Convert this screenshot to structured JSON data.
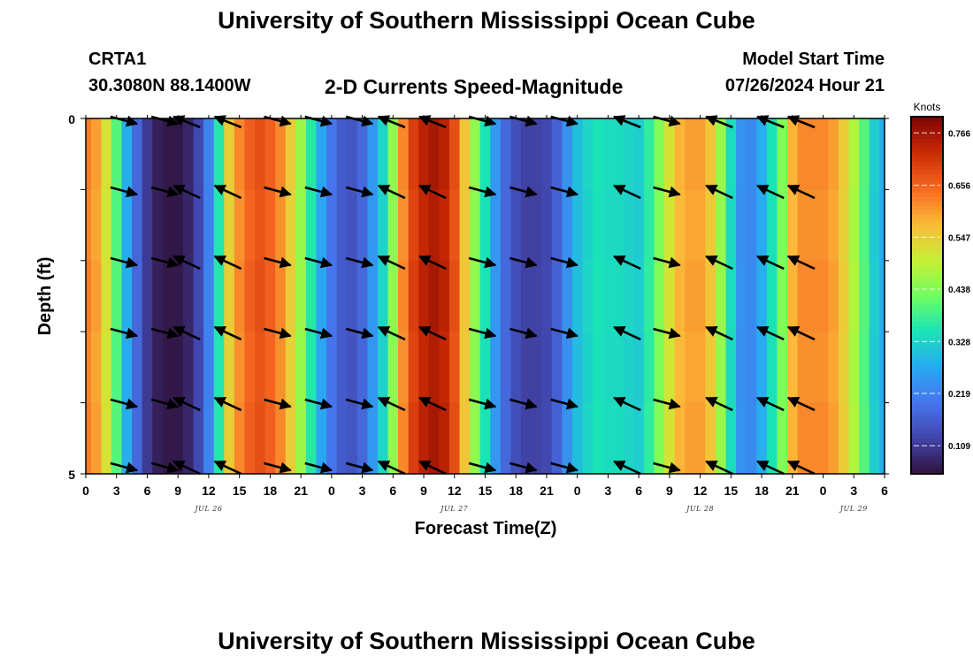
{
  "header": {
    "title": "University of Southern Mississippi Ocean Cube",
    "station": "CRTA1",
    "coords": "30.3080N  88.1400W",
    "subtitle": "2-D Currents Speed-Magnitude",
    "model_start_label": "Model Start Time",
    "model_start_value": "07/26/2024 Hour 21"
  },
  "footer": {
    "title": "University of Southern Mississippi Ocean Cube"
  },
  "chart_data": {
    "type": "heatmap",
    "title": "2-D Currents Speed-Magnitude",
    "xlabel": "Forecast Time(Z)",
    "ylabel": "Depth (ft)",
    "colorbar_label": "Knots",
    "colorbar_ticks": [
      0.766,
      0.656,
      0.547,
      0.438,
      0.328,
      0.219,
      0.109
    ],
    "colorbar_range": [
      0.05,
      0.8
    ],
    "x_range_hours": [
      0,
      78
    ],
    "x_tick_labels": [
      "0",
      "3",
      "6",
      "9",
      "12",
      "15",
      "18",
      "21",
      "0",
      "3",
      "6",
      "9",
      "12",
      "15",
      "18",
      "21",
      "0",
      "3",
      "6",
      "9",
      "12",
      "15",
      "18",
      "21",
      "0",
      "3",
      "6"
    ],
    "date_labels": [
      {
        "label": "JUL 26",
        "hour": 12
      },
      {
        "label": "JUL 27",
        "hour": 36
      },
      {
        "label": "JUL 28",
        "hour": 60
      },
      {
        "label": "JUL 29",
        "hour": 75
      }
    ],
    "y_range": [
      0,
      5
    ],
    "y_tick_labels": [
      "0",
      "5"
    ],
    "depth_layers": 5,
    "speed_hours": [
      0,
      1,
      2,
      3,
      4,
      5,
      6,
      7,
      8,
      9,
      10,
      11,
      12,
      13,
      14,
      15,
      16,
      17,
      18,
      19,
      20,
      21,
      22,
      23,
      24,
      25,
      26,
      27,
      28,
      29,
      30,
      31,
      32,
      33,
      34,
      35,
      36,
      37,
      38,
      39,
      40,
      41,
      42,
      43,
      44,
      45,
      46,
      47,
      48,
      49,
      50,
      51,
      52,
      53,
      54,
      55,
      56,
      57,
      58,
      59,
      60,
      61,
      62,
      63,
      64,
      65,
      66,
      67,
      68,
      69,
      70,
      71,
      72,
      73,
      74,
      75,
      76,
      77,
      78
    ],
    "speed_knots": [
      0.63,
      0.6,
      0.52,
      0.4,
      0.28,
      0.18,
      0.11,
      0.07,
      0.06,
      0.06,
      0.08,
      0.13,
      0.22,
      0.36,
      0.55,
      0.62,
      0.66,
      0.68,
      0.66,
      0.62,
      0.55,
      0.46,
      0.36,
      0.27,
      0.2,
      0.16,
      0.15,
      0.18,
      0.25,
      0.33,
      0.45,
      0.62,
      0.7,
      0.74,
      0.76,
      0.74,
      0.68,
      0.56,
      0.45,
      0.35,
      0.25,
      0.18,
      0.14,
      0.12,
      0.12,
      0.13,
      0.17,
      0.24,
      0.3,
      0.33,
      0.35,
      0.34,
      0.34,
      0.33,
      0.32,
      0.37,
      0.44,
      0.52,
      0.58,
      0.6,
      0.6,
      0.56,
      0.46,
      0.34,
      0.24,
      0.23,
      0.28,
      0.35,
      0.44,
      0.58,
      0.62,
      0.62,
      0.62,
      0.6,
      0.55,
      0.48,
      0.4,
      0.32,
      0.28
    ],
    "arrow_hours": [
      5,
      9,
      11,
      15,
      20,
      24,
      28,
      31,
      35,
      40,
      44,
      48,
      54,
      58,
      63,
      68,
      71
    ],
    "arrow_dirs": [
      "ESE",
      "ESE",
      "NW",
      "NW",
      "ESE",
      "ESE",
      "ESE",
      "NW",
      "NW",
      "ESE",
      "ESE",
      "ESE",
      "NW",
      "ESE",
      "NW",
      "NW",
      "NW"
    ]
  }
}
